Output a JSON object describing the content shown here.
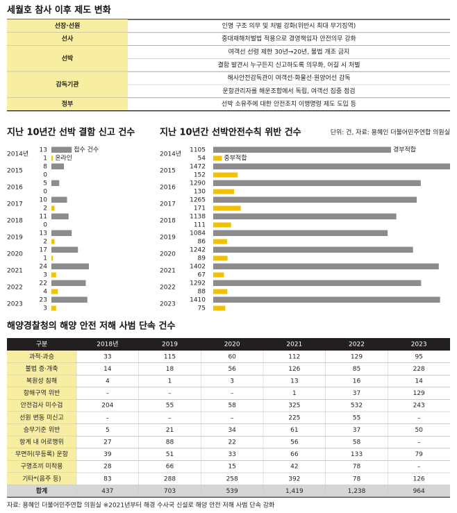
{
  "title": "세월호 참사 이후 제도 변화",
  "policy_table": {
    "rows": [
      {
        "label": "선장·선원",
        "items": [
          "인명 구조 의무 및 처벌 강화(위반시 최대 무기징역)"
        ]
      },
      {
        "label": "선사",
        "items": [
          "중대재해처벌법 적용으로 경영책임자 안전의무 강화"
        ]
      },
      {
        "label": "선박",
        "items": [
          "여객선 선령 제한 30년→20년, 불법 개조 금지",
          "결함 발견시 누구든지 신고하도록 의무화, 어길 시 처벌"
        ]
      },
      {
        "label": "감독기관",
        "items": [
          "해사안전감독관이 여객선·화물선·원양어선 감독",
          "운항관리자를 해운조합에서 독립, 여객선 집중 점검"
        ]
      },
      {
        "label": "정부",
        "items": [
          "선박 소유주에 대한 안전조치 이행명령 제도 도입 등"
        ]
      }
    ]
  },
  "chart_data": [
    {
      "type": "bar",
      "title": "지난 10년간 선박 결함 신고 건수",
      "categories": [
        "2014년",
        "2015",
        "2016",
        "2017",
        "2018",
        "2019",
        "2020",
        "2021",
        "2022",
        "2023"
      ],
      "series": [
        {
          "name": "접수 건수",
          "color": "#8c8c8c",
          "values": [
            13,
            8,
            5,
            10,
            11,
            13,
            17,
            24,
            22,
            23
          ]
        },
        {
          "name": "온라인",
          "color": "#f2c200",
          "values": [
            1,
            0,
            0,
            2,
            0,
            2,
            1,
            3,
            4,
            3
          ]
        }
      ]
    },
    {
      "type": "bar",
      "title": "지난 10년간 선박안전수칙 위반 건수",
      "note": "단위: 건, 자료: 용혜인 더불어민주연합 의원실",
      "categories": [
        "2014년",
        "2015",
        "2016",
        "2017",
        "2018",
        "2019",
        "2020",
        "2021",
        "2022",
        "2023"
      ],
      "series": [
        {
          "name": "경부적합",
          "color": "#8c8c8c",
          "values": [
            1105,
            1472,
            1290,
            1265,
            1138,
            1084,
            1242,
            1402,
            1292,
            1410
          ]
        },
        {
          "name": "중부적합",
          "color": "#f2c200",
          "values": [
            54,
            152,
            130,
            171,
            111,
            86,
            89,
            67,
            88,
            75
          ]
        }
      ]
    }
  ],
  "crackdown_table": {
    "title": "해양경찰청의 해양 안전 저해 사범 단속 건수",
    "header": [
      "구분",
      "2018년",
      "2019",
      "2020",
      "2021",
      "2022",
      "2023"
    ],
    "rows": [
      [
        "과적·과승",
        33,
        115,
        60,
        112,
        129,
        95
      ],
      [
        "불법 증·개축",
        14,
        18,
        56,
        126,
        85,
        228
      ],
      [
        "복원성 침해",
        4,
        1,
        3,
        13,
        16,
        14
      ],
      [
        "항해구역 위반",
        "–",
        "–",
        "–",
        1,
        37,
        129
      ],
      [
        "안전검사 미수검",
        204,
        55,
        58,
        325,
        532,
        243
      ],
      [
        "선원 변동 미신고",
        "–",
        "–",
        "–",
        225,
        55,
        "–"
      ],
      [
        "승무기준 위반",
        5,
        21,
        34,
        61,
        37,
        50
      ],
      [
        "항계 내 어로행위",
        27,
        88,
        22,
        56,
        58,
        "–"
      ],
      [
        "무면허(무등록) 운항",
        39,
        51,
        33,
        66,
        133,
        79
      ],
      [
        "구명조끼 미착용",
        28,
        66,
        15,
        42,
        78,
        "–"
      ],
      [
        "기타*(음주 등)",
        83,
        288,
        258,
        392,
        78,
        126
      ],
      [
        "합계",
        437,
        703,
        539,
        "1,419",
        "1,238",
        964
      ]
    ],
    "note": "자료: 용혜인 더불어민주연합 의원실 ※2021년부터 해경 수사국 신설로 해양 안전 저해 사범 단속 강화"
  }
}
